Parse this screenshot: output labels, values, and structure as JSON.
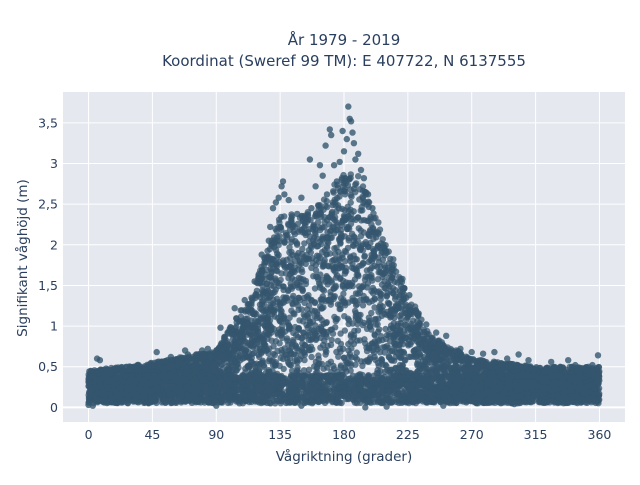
{
  "chart_data": {
    "type": "scatter",
    "title_lines": [
      "År 1979 - 2019",
      "Koordinat (Sweref 99 TM): E 407722, N 6137555"
    ],
    "xlabel": "Vågriktning (grader)",
    "ylabel": "Signifikant våghöjd (m)",
    "xlim": [
      -18,
      378
    ],
    "ylim": [
      -0.18,
      3.88
    ],
    "x_ticks": [
      0,
      45,
      90,
      135,
      180,
      225,
      270,
      315,
      360
    ],
    "x_tick_labels": [
      "0",
      "45",
      "90",
      "135",
      "180",
      "225",
      "270",
      "315",
      "360"
    ],
    "y_ticks": [
      0,
      0.5,
      1,
      1.5,
      2,
      2.5,
      3,
      3.5
    ],
    "y_tick_labels": [
      "0",
      "0,5",
      "1",
      "1,5",
      "2",
      "2,5",
      "3",
      "3,5"
    ],
    "grid": true,
    "marker_color": "#34566e",
    "plot_bg": "#e5e8ef",
    "envelope": {
      "description": "upper bound of the dense point cloud, in data units",
      "x": [
        0,
        45,
        90,
        100,
        115,
        125,
        135,
        150,
        165,
        180,
        190,
        200,
        210,
        225,
        240,
        270,
        315,
        360
      ],
      "y_max": [
        0.45,
        0.55,
        0.7,
        1.0,
        1.4,
        1.9,
        2.35,
        2.4,
        2.55,
        2.9,
        2.85,
        2.5,
        2.0,
        1.45,
        0.9,
        0.6,
        0.5,
        0.5
      ]
    },
    "points": [
      {
        "x": 6,
        "y": 0.6
      },
      {
        "x": 8,
        "y": 0.58
      },
      {
        "x": 48,
        "y": 0.68
      },
      {
        "x": 58,
        "y": 0.62
      },
      {
        "x": 68,
        "y": 0.7
      },
      {
        "x": 70,
        "y": 0.65
      },
      {
        "x": 80,
        "y": 0.7
      },
      {
        "x": 84,
        "y": 0.72
      },
      {
        "x": 86,
        "y": 0.62
      },
      {
        "x": 93,
        "y": 0.98
      },
      {
        "x": 98,
        "y": 0.92
      },
      {
        "x": 103,
        "y": 1.22
      },
      {
        "x": 110,
        "y": 1.32
      },
      {
        "x": 117,
        "y": 1.55
      },
      {
        "x": 122,
        "y": 1.88
      },
      {
        "x": 127,
        "y": 2.05
      },
      {
        "x": 128,
        "y": 2.22
      },
      {
        "x": 130,
        "y": 2.45
      },
      {
        "x": 132,
        "y": 2.52
      },
      {
        "x": 134,
        "y": 2.58
      },
      {
        "x": 136,
        "y": 2.72
      },
      {
        "x": 137,
        "y": 2.78
      },
      {
        "x": 138,
        "y": 2.62
      },
      {
        "x": 141,
        "y": 2.55
      },
      {
        "x": 143,
        "y": 2.28
      },
      {
        "x": 147,
        "y": 2.38
      },
      {
        "x": 150,
        "y": 2.58
      },
      {
        "x": 153,
        "y": 2.32
      },
      {
        "x": 156,
        "y": 3.05
      },
      {
        "x": 157,
        "y": 2.45
      },
      {
        "x": 160,
        "y": 2.72
      },
      {
        "x": 163,
        "y": 2.98
      },
      {
        "x": 165,
        "y": 2.85
      },
      {
        "x": 167,
        "y": 3.22
      },
      {
        "x": 168,
        "y": 2.62
      },
      {
        "x": 170,
        "y": 3.42
      },
      {
        "x": 171,
        "y": 3.35
      },
      {
        "x": 173,
        "y": 2.98
      },
      {
        "x": 175,
        "y": 2.78
      },
      {
        "x": 177,
        "y": 3.02
      },
      {
        "x": 179,
        "y": 3.4
      },
      {
        "x": 180,
        "y": 3.15
      },
      {
        "x": 181,
        "y": 2.82
      },
      {
        "x": 182,
        "y": 3.3
      },
      {
        "x": 183,
        "y": 3.7
      },
      {
        "x": 184,
        "y": 3.55
      },
      {
        "x": 185,
        "y": 3.52
      },
      {
        "x": 186,
        "y": 3.38
      },
      {
        "x": 187,
        "y": 3.25
      },
      {
        "x": 188,
        "y": 3.05
      },
      {
        "x": 190,
        "y": 3.12
      },
      {
        "x": 192,
        "y": 2.92
      },
      {
        "x": 194,
        "y": 2.82
      },
      {
        "x": 197,
        "y": 2.62
      },
      {
        "x": 200,
        "y": 2.45
      },
      {
        "x": 204,
        "y": 2.15
      },
      {
        "x": 210,
        "y": 1.9
      },
      {
        "x": 215,
        "y": 1.75
      },
      {
        "x": 220,
        "y": 1.58
      },
      {
        "x": 226,
        "y": 1.38
      },
      {
        "x": 232,
        "y": 1.15
      },
      {
        "x": 238,
        "y": 1.02
      },
      {
        "x": 245,
        "y": 0.92
      },
      {
        "x": 252,
        "y": 0.88
      },
      {
        "x": 262,
        "y": 0.72
      },
      {
        "x": 270,
        "y": 0.68
      },
      {
        "x": 278,
        "y": 0.66
      },
      {
        "x": 286,
        "y": 0.68
      },
      {
        "x": 295,
        "y": 0.6
      },
      {
        "x": 303,
        "y": 0.65
      },
      {
        "x": 310,
        "y": 0.58
      },
      {
        "x": 326,
        "y": 0.56
      },
      {
        "x": 338,
        "y": 0.58
      },
      {
        "x": 343,
        "y": 0.52
      },
      {
        "x": 355,
        "y": 0.52
      },
      {
        "x": 359,
        "y": 0.64
      },
      {
        "x": 0,
        "y": 0.03
      },
      {
        "x": 3,
        "y": 0.02
      },
      {
        "x": 90,
        "y": 0.02
      },
      {
        "x": 150,
        "y": 0.02
      },
      {
        "x": 195,
        "y": 0.0
      },
      {
        "x": 210,
        "y": 0.01
      },
      {
        "x": 250,
        "y": 0.02
      },
      {
        "x": 300,
        "y": 0.04
      }
    ]
  }
}
